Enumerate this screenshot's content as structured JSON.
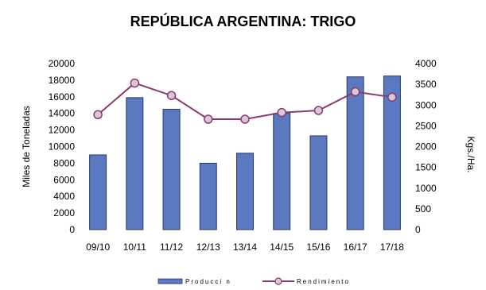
{
  "chart_data": {
    "type": "bar",
    "title": "REPÚBLICA ARGENTINA: TRIGO",
    "ylabel": "Miles de Toneladas",
    "y2label": "Kgs./Ha.",
    "categories": [
      "09/10",
      "10/11",
      "11/12",
      "12/13",
      "13/14",
      "14/15",
      "15/16",
      "16/17",
      "17/18"
    ],
    "ylim": [
      0,
      20000
    ],
    "yticks": [
      0,
      2000,
      4000,
      6000,
      8000,
      10000,
      12000,
      14000,
      16000,
      18000,
      20000
    ],
    "y2lim": [
      0,
      4000
    ],
    "y2ticks": [
      0,
      500,
      1000,
      1500,
      2000,
      2500,
      3000,
      3500,
      4000
    ],
    "grid": false,
    "legend_position": "bottom",
    "series": [
      {
        "name": "Producci n",
        "type": "bar",
        "axis": "left",
        "color": "#5b79c0",
        "values": [
          9000,
          15900,
          14500,
          8000,
          9200,
          14000,
          11300,
          18400,
          18500
        ]
      },
      {
        "name": "Rendimiento",
        "type": "line",
        "axis": "right",
        "color": "#8b3a6e",
        "values": [
          2770,
          3530,
          3230,
          2660,
          2660,
          2820,
          2870,
          3320,
          3190
        ]
      }
    ]
  }
}
